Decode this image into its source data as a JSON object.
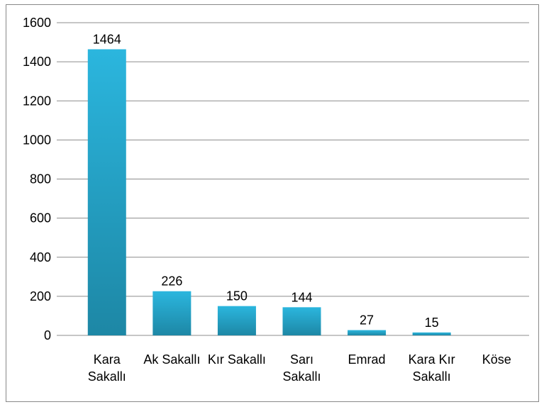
{
  "chart_data": {
    "type": "bar",
    "categories": [
      "Kara Sakallı",
      "Ak Sakallı",
      "Kır Sakallı",
      "Sarı Sakallı",
      "Emrad",
      "Kara Kır Sakallı",
      "Köse"
    ],
    "values": [
      1464,
      226,
      150,
      144,
      27,
      15,
      null
    ],
    "color": "#29b2d9",
    "ylim": [
      0,
      1600
    ],
    "yticks": [
      0,
      200,
      400,
      600,
      800,
      1000,
      1200,
      1400,
      1600
    ],
    "grid": true
  }
}
